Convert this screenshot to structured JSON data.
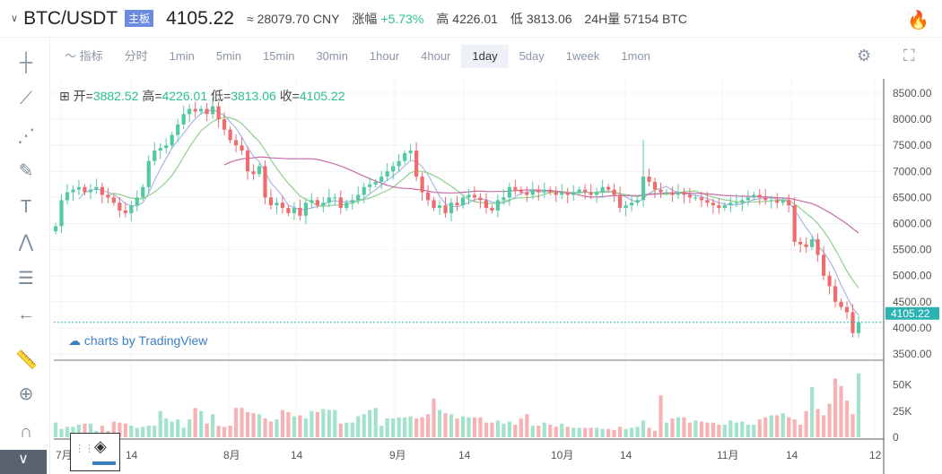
{
  "header": {
    "pair": "BTC/USDT",
    "tag": "主板",
    "last": "4105.22",
    "cny": "≈ 28079.70 CNY",
    "change_label": "涨幅",
    "change": "+5.73%",
    "high_label": "高",
    "high": "4226.01",
    "low_label": "低",
    "low": "3813.06",
    "vol_label": "24H量",
    "vol": "57154 BTC"
  },
  "toolbar": {
    "indicator": "指标",
    "intervals": [
      "分时",
      "1min",
      "5min",
      "15min",
      "30min",
      "1hour",
      "4hour",
      "1day",
      "5day",
      "1week",
      "1mon"
    ],
    "active": "1day"
  },
  "ohlc": {
    "open_label": "开=",
    "open": "3882.52",
    "high_label": "高=",
    "high": "4226.01",
    "low_label": "低=",
    "low": "3813.06",
    "close_label": "收=",
    "close": "4105.22"
  },
  "watermark": "charts by TradingView",
  "colors": {
    "up": "#53c9a2",
    "down": "#ee6b6e",
    "vol_up": "#a3e3cc",
    "vol_down": "#f7b3b4",
    "ma5": "#a9b4e6",
    "ma10": "#8fcf8f",
    "ma30": "#c86aa8",
    "price_line": "#2bb3b3"
  },
  "chart_data": {
    "type": "candlestick",
    "title": "BTC/USDT 1day",
    "ylim": [
      3300,
      8700
    ],
    "price_ticks": [
      "8500.00",
      "8000.00",
      "7500.00",
      "7000.00",
      "6500.00",
      "6000.00",
      "5500.00",
      "5000.00",
      "4500.00",
      "4000.00",
      "3500.00"
    ],
    "current_price": "4105.22",
    "volume_ticks": [
      "50K",
      "25K",
      "0"
    ],
    "volume_ylim": [
      0,
      65
    ],
    "date_ticks": [
      "7月",
      "14",
      "8月",
      "14",
      "9月",
      "14",
      "10月",
      "14",
      "11月",
      "14",
      "12"
    ],
    "closes": [
      5950,
      6450,
      6600,
      6650,
      6700,
      6600,
      6650,
      6700,
      6550,
      6500,
      6400,
      6250,
      6200,
      6350,
      6500,
      6700,
      7200,
      7400,
      7450,
      7500,
      7700,
      7900,
      8100,
      8200,
      8150,
      8200,
      8100,
      8250,
      8000,
      7800,
      7600,
      7500,
      7400,
      7000,
      6950,
      7100,
      6500,
      6350,
      6400,
      6300,
      6200,
      6300,
      6150,
      6400,
      6450,
      6350,
      6400,
      6500,
      6500,
      6300,
      6400,
      6450,
      6550,
      6700,
      6750,
      6800,
      6900,
      7000,
      7100,
      7200,
      7350,
      7400,
      6900,
      6600,
      6450,
      6300,
      6350,
      6200,
      6400,
      6350,
      6500,
      6550,
      6500,
      6450,
      6300,
      6250,
      6450,
      6500,
      6700,
      6650,
      6600,
      6550,
      6650,
      6600,
      6650,
      6600,
      6550,
      6600,
      6550,
      6600,
      6650,
      6600,
      6550,
      6600,
      6700,
      6650,
      6550,
      6300,
      6350,
      6400,
      6450,
      6900,
      6800,
      6650,
      6600,
      6600,
      6550,
      6600,
      6550,
      6500,
      6500,
      6450,
      6400,
      6350,
      6300,
      6350,
      6400,
      6400,
      6450,
      6500,
      6550,
      6500,
      6450,
      6450,
      6400,
      6450,
      6350,
      5650,
      5600,
      5550,
      5700,
      5400,
      5000,
      4800,
      4500,
      4400,
      4300,
      3900,
      4105
    ],
    "volumes_k": [
      14,
      8,
      10,
      10,
      12,
      13,
      13,
      6,
      11,
      6,
      15,
      14,
      13,
      11,
      9,
      10,
      11,
      11,
      25,
      18,
      15,
      17,
      9,
      17,
      28,
      25,
      13,
      22,
      11,
      10,
      11,
      28,
      28,
      24,
      23,
      22,
      18,
      15,
      17,
      26,
      24,
      20,
      21,
      18,
      25,
      24,
      27,
      26,
      26,
      13,
      14,
      14,
      20,
      22,
      26,
      28,
      11,
      18,
      18,
      19,
      19,
      20,
      18,
      19,
      22,
      37,
      26,
      23,
      22,
      18,
      20,
      19,
      19,
      19,
      14,
      14,
      16,
      13,
      15,
      12,
      18,
      22,
      11,
      11,
      14,
      12,
      10,
      13,
      10,
      9,
      9,
      9,
      9,
      9,
      8,
      8,
      7,
      10,
      8,
      9,
      10,
      16,
      9,
      6,
      40,
      14,
      18,
      19,
      19,
      14,
      16,
      15,
      14,
      14,
      12,
      12,
      16,
      14,
      15,
      12,
      12,
      17,
      19,
      21,
      21,
      23,
      19,
      17,
      12,
      25,
      48,
      27,
      21,
      32,
      56,
      49,
      35,
      22,
      61
    ]
  }
}
